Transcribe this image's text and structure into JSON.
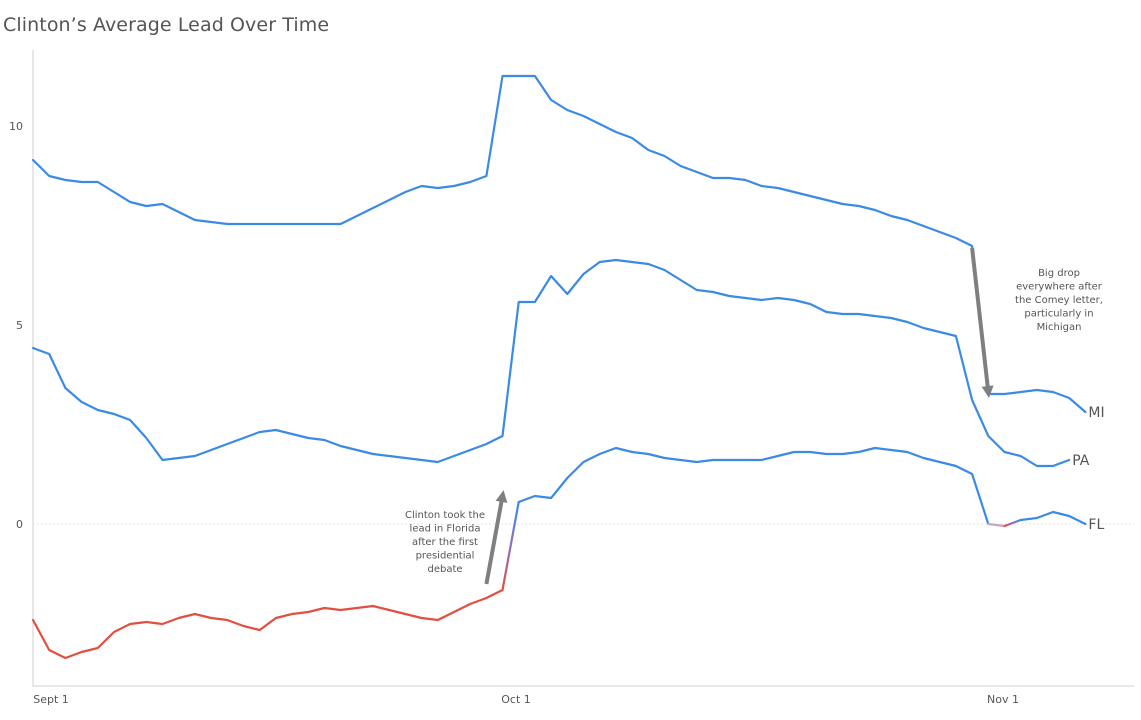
{
  "chart_data": {
    "type": "line",
    "title": "Clinton’s Average Lead Over Time",
    "xlabel": "",
    "ylabel": "",
    "x_tick_labels": [
      "Sept 1",
      "Oct 1",
      "Nov 1"
    ],
    "y_tick_labels": [
      "0",
      "5",
      "10"
    ],
    "xlim": [
      "2016-09-01",
      "2016-11-08"
    ],
    "ylim": [
      -4.05,
      11.85
    ],
    "grid": "zero-line only",
    "colors": {
      "positive": "#3b8ae6",
      "negative": "#e34f3f",
      "zero_crossing": "#8f6fc4",
      "annotation_arrow": "#7f7f7f"
    },
    "series": [
      {
        "name": "MI",
        "points": [
          [
            "2016-09-01",
            9.1
          ],
          [
            "2016-09-02",
            8.7
          ],
          [
            "2016-09-03",
            8.6
          ],
          [
            "2016-09-04",
            8.55
          ],
          [
            "2016-09-05",
            8.55
          ],
          [
            "2016-09-06",
            8.3
          ],
          [
            "2016-09-07",
            8.05
          ],
          [
            "2016-09-08",
            7.95
          ],
          [
            "2016-09-09",
            8.0
          ],
          [
            "2016-09-10",
            7.8
          ],
          [
            "2016-09-11",
            7.6
          ],
          [
            "2016-09-12",
            7.55
          ],
          [
            "2016-09-13",
            7.5
          ],
          [
            "2016-09-20",
            7.5
          ],
          [
            "2016-09-21",
            7.7
          ],
          [
            "2016-09-22",
            7.9
          ],
          [
            "2016-09-23",
            8.1
          ],
          [
            "2016-09-24",
            8.3
          ],
          [
            "2016-09-25",
            8.45
          ],
          [
            "2016-09-26",
            8.4
          ],
          [
            "2016-09-27",
            8.45
          ],
          [
            "2016-09-28",
            8.55
          ],
          [
            "2016-09-29",
            8.7
          ],
          [
            "2016-09-30",
            11.2
          ],
          [
            "2016-10-01",
            11.2
          ],
          [
            "2016-10-02",
            11.2
          ],
          [
            "2016-10-03",
            10.6
          ],
          [
            "2016-10-04",
            10.35
          ],
          [
            "2016-10-05",
            10.2
          ],
          [
            "2016-10-06",
            10.0
          ],
          [
            "2016-10-07",
            9.8
          ],
          [
            "2016-10-08",
            9.65
          ],
          [
            "2016-10-09",
            9.35
          ],
          [
            "2016-10-10",
            9.2
          ],
          [
            "2016-10-11",
            8.95
          ],
          [
            "2016-10-12",
            8.8
          ],
          [
            "2016-10-13",
            8.65
          ],
          [
            "2016-10-14",
            8.65
          ],
          [
            "2016-10-15",
            8.6
          ],
          [
            "2016-10-16",
            8.45
          ],
          [
            "2016-10-17",
            8.4
          ],
          [
            "2016-10-18",
            8.3
          ],
          [
            "2016-10-19",
            8.2
          ],
          [
            "2016-10-20",
            8.1
          ],
          [
            "2016-10-21",
            8.0
          ],
          [
            "2016-10-22",
            7.95
          ],
          [
            "2016-10-23",
            7.85
          ],
          [
            "2016-10-24",
            7.7
          ],
          [
            "2016-10-25",
            7.6
          ],
          [
            "2016-10-26",
            7.45
          ],
          [
            "2016-10-27",
            7.3
          ],
          [
            "2016-10-28",
            7.15
          ],
          [
            "2016-10-29",
            6.95
          ],
          [
            "2016-10-30",
            3.25
          ],
          [
            "2016-10-31",
            3.25
          ],
          [
            "2016-11-01",
            3.3
          ],
          [
            "2016-11-02",
            3.35
          ],
          [
            "2016-11-03",
            3.3
          ],
          [
            "2016-11-04",
            3.15
          ],
          [
            "2016-11-05",
            2.8
          ]
        ]
      },
      {
        "name": "PA",
        "points": [
          [
            "2016-09-01",
            4.4
          ],
          [
            "2016-09-02",
            4.25
          ],
          [
            "2016-09-03",
            3.4
          ],
          [
            "2016-09-04",
            3.05
          ],
          [
            "2016-09-05",
            2.85
          ],
          [
            "2016-09-06",
            2.75
          ],
          [
            "2016-09-07",
            2.6
          ],
          [
            "2016-09-08",
            2.15
          ],
          [
            "2016-09-09",
            1.6
          ],
          [
            "2016-09-10",
            1.65
          ],
          [
            "2016-09-11",
            1.7
          ],
          [
            "2016-09-12",
            1.85
          ],
          [
            "2016-09-13",
            2.0
          ],
          [
            "2016-09-14",
            2.15
          ],
          [
            "2016-09-15",
            2.3
          ],
          [
            "2016-09-16",
            2.35
          ],
          [
            "2016-09-17",
            2.25
          ],
          [
            "2016-09-18",
            2.15
          ],
          [
            "2016-09-19",
            2.1
          ],
          [
            "2016-09-20",
            1.95
          ],
          [
            "2016-09-21",
            1.85
          ],
          [
            "2016-09-22",
            1.75
          ],
          [
            "2016-09-23",
            1.7
          ],
          [
            "2016-09-24",
            1.65
          ],
          [
            "2016-09-25",
            1.6
          ],
          [
            "2016-09-26",
            1.55
          ],
          [
            "2016-09-27",
            1.7
          ],
          [
            "2016-09-28",
            1.85
          ],
          [
            "2016-09-29",
            2.0
          ],
          [
            "2016-09-30",
            2.2
          ],
          [
            "2016-10-01",
            5.55
          ],
          [
            "2016-10-02",
            5.55
          ],
          [
            "2016-10-03",
            6.2
          ],
          [
            "2016-10-04",
            5.75
          ],
          [
            "2016-10-05",
            6.25
          ],
          [
            "2016-10-06",
            6.55
          ],
          [
            "2016-10-07",
            6.6
          ],
          [
            "2016-10-08",
            6.55
          ],
          [
            "2016-10-09",
            6.5
          ],
          [
            "2016-10-10",
            6.35
          ],
          [
            "2016-10-11",
            6.1
          ],
          [
            "2016-10-12",
            5.85
          ],
          [
            "2016-10-13",
            5.8
          ],
          [
            "2016-10-14",
            5.7
          ],
          [
            "2016-10-15",
            5.65
          ],
          [
            "2016-10-16",
            5.6
          ],
          [
            "2016-10-17",
            5.65
          ],
          [
            "2016-10-18",
            5.6
          ],
          [
            "2016-10-19",
            5.5
          ],
          [
            "2016-10-20",
            5.3
          ],
          [
            "2016-10-21",
            5.25
          ],
          [
            "2016-10-22",
            5.25
          ],
          [
            "2016-10-23",
            5.2
          ],
          [
            "2016-10-24",
            5.15
          ],
          [
            "2016-10-25",
            5.05
          ],
          [
            "2016-10-26",
            4.9
          ],
          [
            "2016-10-27",
            4.8
          ],
          [
            "2016-10-28",
            4.7
          ],
          [
            "2016-10-29",
            3.1
          ],
          [
            "2016-10-30",
            2.2
          ],
          [
            "2016-10-31",
            1.8
          ],
          [
            "2016-11-01",
            1.7
          ],
          [
            "2016-11-02",
            1.45
          ],
          [
            "2016-11-03",
            1.45
          ],
          [
            "2016-11-04",
            1.6
          ]
        ]
      },
      {
        "name": "FL",
        "points": [
          [
            "2016-09-01",
            -2.4
          ],
          [
            "2016-09-02",
            -3.15
          ],
          [
            "2016-09-03",
            -3.35
          ],
          [
            "2016-09-04",
            -3.2
          ],
          [
            "2016-09-05",
            -3.1
          ],
          [
            "2016-09-06",
            -2.7
          ],
          [
            "2016-09-07",
            -2.5
          ],
          [
            "2016-09-08",
            -2.45
          ],
          [
            "2016-09-09",
            -2.5
          ],
          [
            "2016-09-10",
            -2.35
          ],
          [
            "2016-09-11",
            -2.25
          ],
          [
            "2016-09-12",
            -2.35
          ],
          [
            "2016-09-13",
            -2.4
          ],
          [
            "2016-09-14",
            -2.55
          ],
          [
            "2016-09-15",
            -2.65
          ],
          [
            "2016-09-16",
            -2.35
          ],
          [
            "2016-09-17",
            -2.25
          ],
          [
            "2016-09-18",
            -2.2
          ],
          [
            "2016-09-19",
            -2.1
          ],
          [
            "2016-09-20",
            -2.15
          ],
          [
            "2016-09-21",
            -2.1
          ],
          [
            "2016-09-22",
            -2.05
          ],
          [
            "2016-09-23",
            -2.15
          ],
          [
            "2016-09-24",
            -2.25
          ],
          [
            "2016-09-25",
            -2.35
          ],
          [
            "2016-09-26",
            -2.4
          ],
          [
            "2016-09-27",
            -2.2
          ],
          [
            "2016-09-28",
            -2.0
          ],
          [
            "2016-09-29",
            -1.85
          ],
          [
            "2016-09-30",
            -1.65
          ],
          [
            "2016-10-01",
            0.55
          ],
          [
            "2016-10-02",
            0.7
          ],
          [
            "2016-10-03",
            0.65
          ],
          [
            "2016-10-04",
            1.15
          ],
          [
            "2016-10-05",
            1.55
          ],
          [
            "2016-10-06",
            1.75
          ],
          [
            "2016-10-07",
            1.9
          ],
          [
            "2016-10-08",
            1.8
          ],
          [
            "2016-10-09",
            1.75
          ],
          [
            "2016-10-10",
            1.65
          ],
          [
            "2016-10-11",
            1.6
          ],
          [
            "2016-10-12",
            1.55
          ],
          [
            "2016-10-13",
            1.6
          ],
          [
            "2016-10-14",
            1.6
          ],
          [
            "2016-10-15",
            1.6
          ],
          [
            "2016-10-16",
            1.6
          ],
          [
            "2016-10-17",
            1.7
          ],
          [
            "2016-10-18",
            1.8
          ],
          [
            "2016-10-19",
            1.8
          ],
          [
            "2016-10-20",
            1.75
          ],
          [
            "2016-10-21",
            1.75
          ],
          [
            "2016-10-22",
            1.8
          ],
          [
            "2016-10-23",
            1.9
          ],
          [
            "2016-10-24",
            1.85
          ],
          [
            "2016-10-25",
            1.8
          ],
          [
            "2016-10-26",
            1.65
          ],
          [
            "2016-10-27",
            1.55
          ],
          [
            "2016-10-28",
            1.45
          ],
          [
            "2016-10-29",
            1.25
          ],
          [
            "2016-10-30",
            0.0
          ],
          [
            "2016-10-31",
            -0.05
          ],
          [
            "2016-11-01",
            0.1
          ],
          [
            "2016-11-02",
            0.15
          ],
          [
            "2016-11-03",
            0.3
          ],
          [
            "2016-11-04",
            0.2
          ],
          [
            "2016-11-05",
            0.0
          ]
        ]
      }
    ],
    "annotations": [
      {
        "name": "florida-lead",
        "lines": [
          "Clinton took the",
          "lead in Florida",
          "after the first",
          "presidential",
          "debate"
        ],
        "arrow_from": [
          "2016-09-29",
          -1.5
        ],
        "arrow_to": [
          "2016-09-30",
          0.7
        ]
      },
      {
        "name": "comey-drop",
        "lines": [
          "Big drop",
          "everywhere after",
          "the Comey letter,",
          "particularly in",
          "Michigan"
        ],
        "arrow_from": [
          "2016-10-29",
          6.9
        ],
        "arrow_to": [
          "2016-10-30",
          3.3
        ]
      }
    ]
  }
}
